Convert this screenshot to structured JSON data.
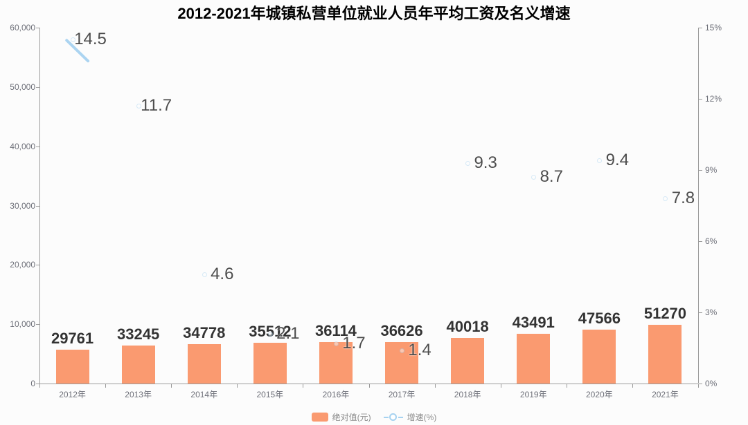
{
  "title": "2012-2021年城镇私营单位就业人员年平均工资及名义增速",
  "legend": {
    "bar_label": "绝对值(元)",
    "line_label": "增速(%)"
  },
  "colors": {
    "bar": "#fa9a70",
    "line": "#a6d2f0",
    "value_label": "#333333",
    "growth_label": "#4d4d4d",
    "axis_line": "#9a9a9a",
    "tick_label": "#6e7079",
    "legend_text": "#8c8c8c",
    "background": "#fcfcfc",
    "title": "#000000"
  },
  "chart_data": {
    "type": "bar",
    "subtype": "bar-line-combo",
    "title": "2012-2021年城镇私营单位就业人员年平均工资及名义增速",
    "categories": [
      "2012年",
      "2013年",
      "2014年",
      "2015年",
      "2016年",
      "2017年",
      "2018年",
      "2019年",
      "2020年",
      "2021年"
    ],
    "series": [
      {
        "name": "绝对值(元)",
        "type": "bar",
        "axis": "left",
        "values": [
          29761,
          33245,
          34778,
          35512,
          36114,
          36626,
          40018,
          43491,
          47566,
          51270
        ]
      },
      {
        "name": "增速(%)",
        "type": "line",
        "axis": "right",
        "values": [
          14.5,
          11.7,
          4.6,
          2.1,
          1.7,
          1.4,
          9.3,
          8.7,
          9.4,
          7.8
        ]
      }
    ],
    "left_axis": {
      "min": 0,
      "max": 60000,
      "tick_labels": [
        "0",
        "10,000",
        "20,000",
        "30,000",
        "40,000",
        "50,000",
        "60,000"
      ]
    },
    "right_axis": {
      "min": 0,
      "max": 15,
      "tick_labels": [
        "0%",
        "3%",
        "6%",
        "9%",
        "12%",
        "15%"
      ]
    },
    "grid": false,
    "legend_position": "bottom",
    "render_note": "snapshot mid-animation: bars drawn far below full axis scale; growth line visible only as a short segment through the 2012 point; point markers very faint"
  }
}
